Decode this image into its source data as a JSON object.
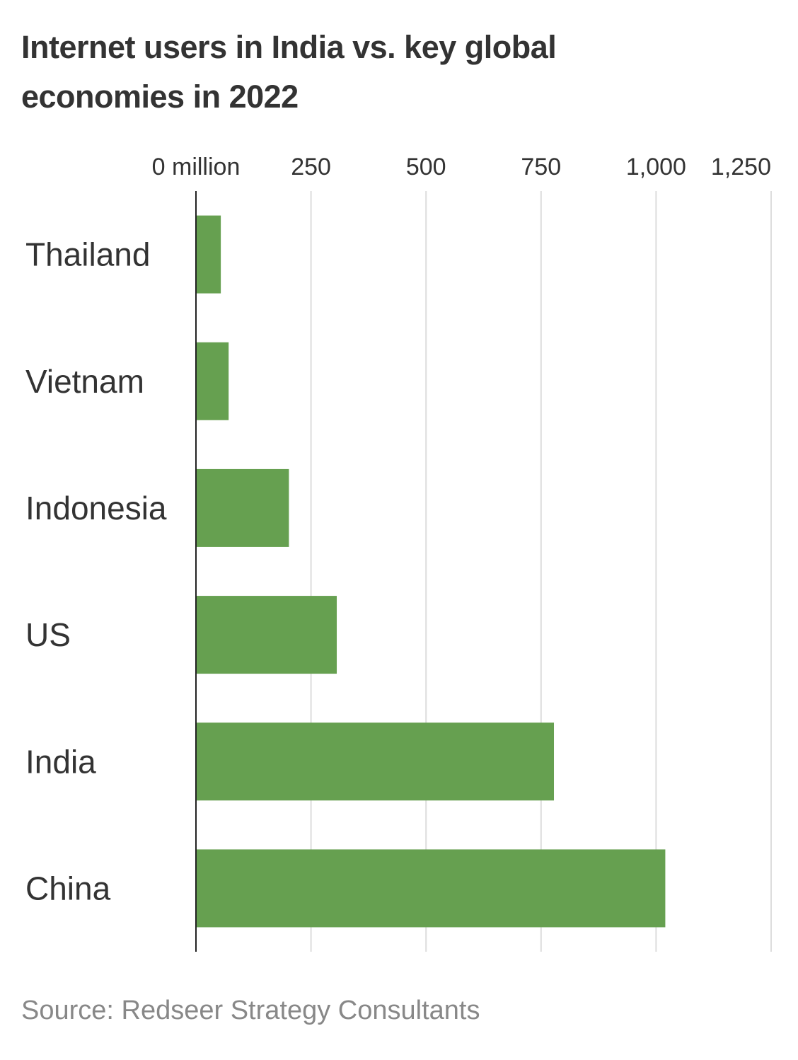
{
  "chart_data": {
    "type": "bar",
    "orientation": "horizontal",
    "title": "Internet users in India vs. key global economies in 2022",
    "source": "Source: Redseer Strategy Consultants",
    "categories": [
      "Thailand",
      "Vietnam",
      "Indonesia",
      "US",
      "India",
      "China"
    ],
    "values": [
      54,
      71,
      202,
      306,
      778,
      1020
    ],
    "color": "#66a050",
    "xlim": [
      0,
      1250
    ],
    "xticks": [
      {
        "value": 0,
        "label": "0 million"
      },
      250,
      500,
      750,
      {
        "value": 1000,
        "label": "1,000"
      },
      {
        "value": 1250,
        "label": "1,250"
      }
    ],
    "grid": true
  }
}
